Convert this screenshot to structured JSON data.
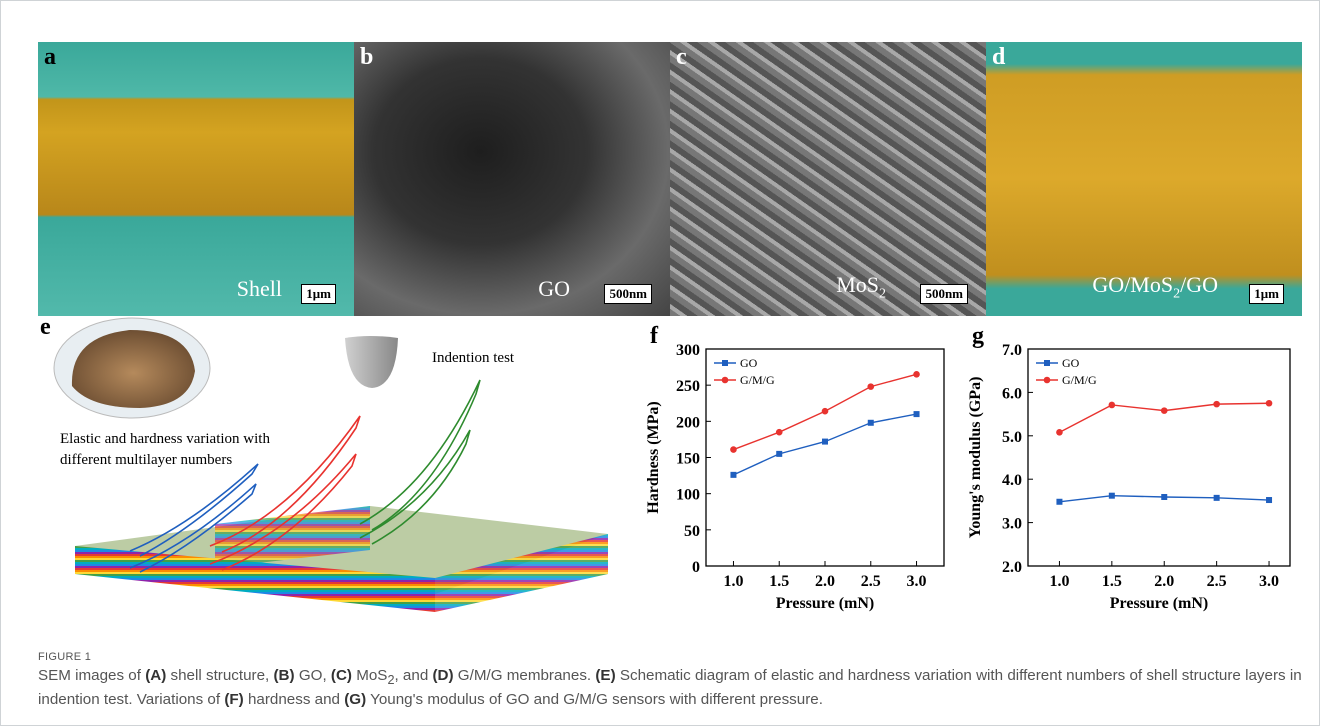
{
  "figure": {
    "panels": {
      "a": {
        "label": "a",
        "caption": "Shell",
        "scale": "1μm"
      },
      "b": {
        "label": "b",
        "caption": "GO",
        "scale": "500nm"
      },
      "c": {
        "label": "c",
        "caption": [
          "MoS",
          "2"
        ],
        "scale": "500nm"
      },
      "d": {
        "label": "d",
        "caption": [
          "GO/MoS",
          "2",
          "/GO"
        ],
        "scale": "1μm"
      },
      "e": {
        "label": "e",
        "test": "Indention test",
        "note": [
          "Elastic and hardness variation with",
          "different multilayer numbers"
        ]
      }
    },
    "caption_title": "FIGURE 1",
    "caption": [
      "SEM images of ",
      "(A)",
      " shell structure, ",
      "(B)",
      " GO, ",
      "(C)",
      " MoS",
      "2",
      ", and ",
      "(D)",
      " G/M/G membranes. ",
      "(E)",
      " Schematic diagram of elastic and hardness variation with different numbers of shell structure layers in indention test. Variations of ",
      "(F)",
      " hardness and ",
      "(G)",
      " Young's modulus of GO and G/M/G sensors with different pressure."
    ]
  },
  "chart_data": [
    {
      "type": "line",
      "panel_label": "f",
      "x_label": "Pressure (mN)",
      "y_label": "Hardness (MPa)",
      "x": [
        1.0,
        1.5,
        2.0,
        2.5,
        3.0
      ],
      "xlim": [
        0.7,
        3.3
      ],
      "xticks": [
        {
          "value": 1.0,
          "label": "1.0"
        },
        {
          "value": 1.5,
          "label": "1.5"
        },
        {
          "value": 2.0,
          "label": "2.0"
        },
        {
          "value": 2.5,
          "label": "2.5"
        },
        {
          "value": 3.0,
          "label": "3.0"
        }
      ],
      "ylim": [
        0,
        300
      ],
      "yticks": [
        0,
        50,
        100,
        150,
        200,
        250,
        300
      ],
      "legend": "upper left",
      "series": [
        {
          "name": "GO",
          "color": "#1f5fbf",
          "marker": "square",
          "values": [
            126,
            155,
            172,
            198,
            210
          ]
        },
        {
          "name": "G/M/G",
          "color": "#e8332f",
          "marker": "circle",
          "values": [
            161,
            185,
            214,
            248,
            265
          ]
        }
      ]
    },
    {
      "type": "line",
      "panel_label": "g",
      "x_label": "Pressure (mN)",
      "y_label": "Young's modulus (GPa)",
      "x": [
        1.0,
        1.5,
        2.0,
        2.5,
        3.0
      ],
      "xlim": [
        0.7,
        3.2
      ],
      "xticks": [
        {
          "value": 1.0,
          "label": "1.0"
        },
        {
          "value": 1.5,
          "label": "1.5"
        },
        {
          "value": 2.0,
          "label": "2.0"
        },
        {
          "value": 2.5,
          "label": "2.5"
        },
        {
          "value": 3.0,
          "label": "3.0"
        }
      ],
      "ylim": [
        2.0,
        7.0
      ],
      "yticks": [
        {
          "value": 2.0,
          "label": "2.0"
        },
        {
          "value": 3.0,
          "label": "3.0"
        },
        {
          "value": 4.0,
          "label": "4.0"
        },
        {
          "value": 5.0,
          "label": "5.0"
        },
        {
          "value": 6.0,
          "label": "6.0"
        },
        {
          "value": 7.0,
          "label": "7.0"
        }
      ],
      "legend": "upper left",
      "series": [
        {
          "name": "GO",
          "color": "#1f5fbf",
          "marker": "square",
          "values": [
            3.48,
            3.62,
            3.59,
            3.57,
            3.52
          ]
        },
        {
          "name": "G/M/G",
          "color": "#e8332f",
          "marker": "circle",
          "values": [
            5.08,
            5.71,
            5.58,
            5.73,
            5.75
          ]
        }
      ]
    }
  ]
}
